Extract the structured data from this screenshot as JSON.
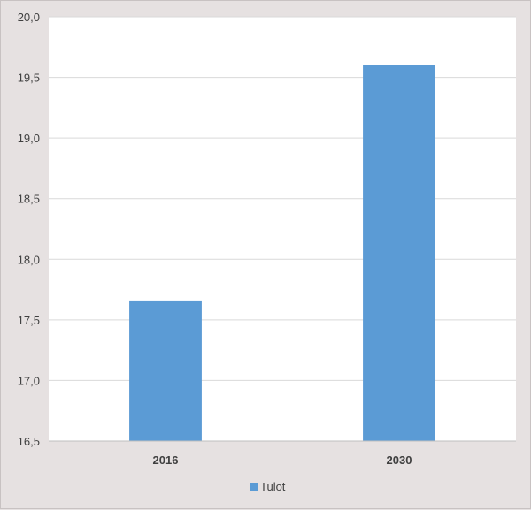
{
  "chart_data": {
    "type": "bar",
    "categories": [
      "2016",
      "2030"
    ],
    "series": [
      {
        "name": "Tulot",
        "values": [
          17.66,
          19.6
        ]
      }
    ],
    "ylim": [
      16.5,
      20.0
    ],
    "yticks": [
      "16,5",
      "17,0",
      "17,5",
      "18,0",
      "18,5",
      "19,0",
      "19,5",
      "20,0"
    ],
    "grid": true,
    "legend_position": "bottom",
    "colors": {
      "bar": "#5b9bd5",
      "grid": "#d9d9d9",
      "plot_bg": "#ffffff"
    }
  }
}
